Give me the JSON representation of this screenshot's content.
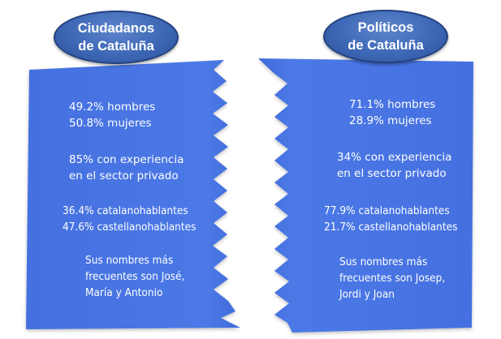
{
  "colors": {
    "panel_blue": "#4a78e5",
    "panel_edge": "#3b66cf",
    "oval_blue": "#3e68b6",
    "text": "#ffffff"
  },
  "left": {
    "title_line1": "Ciudadanos",
    "title_line2": "de Cataluña",
    "gender": [
      "49.2% hombres",
      "50.8% mujeres"
    ],
    "experience": [
      "85% con experiencia",
      "en el sector privado"
    ],
    "language": [
      "36.4% catalanohablantes",
      "47.6% castellanohablantes"
    ],
    "names": [
      "Sus nombres más",
      "frecuentes son José,",
      "María y Antonio"
    ]
  },
  "right": {
    "title_line1": "Políticos",
    "title_line2": "de Cataluña",
    "gender": [
      "71.1% hombres",
      "28.9% mujeres"
    ],
    "experience": [
      "34%  con experiencia",
      "en el sector privado"
    ],
    "language": [
      "77.9% catalanohablantes",
      "21.7% castellanohablantes"
    ],
    "names": [
      "Sus nombres más",
      "frecuentes son Josep,",
      "Jordi y Joan"
    ]
  }
}
